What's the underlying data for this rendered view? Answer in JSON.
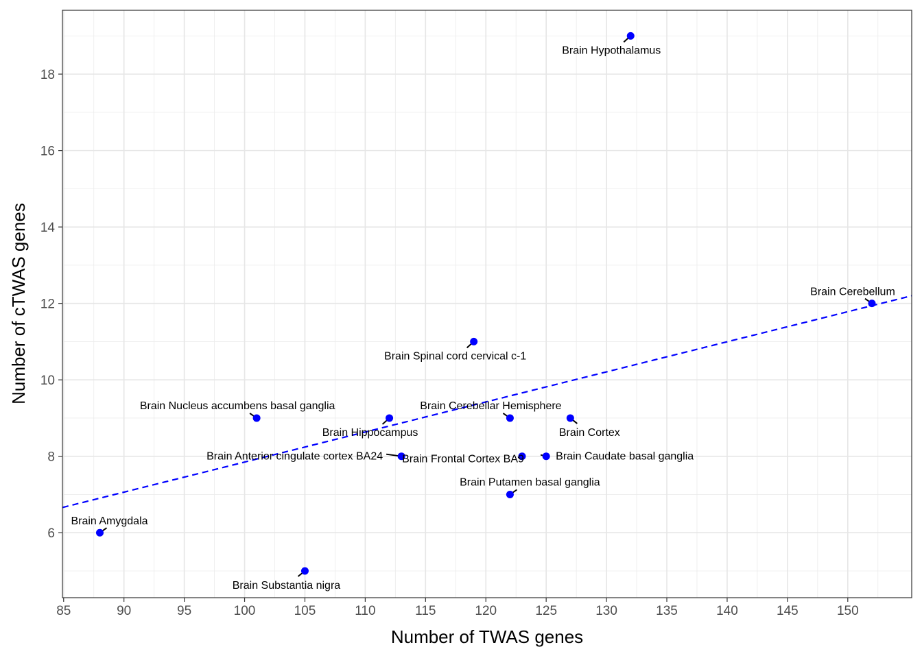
{
  "chart_data": {
    "type": "scatter",
    "xlabel": "Number of TWAS genes",
    "ylabel": "Number of cTWAS genes",
    "xlim": [
      84.9,
      155.3
    ],
    "ylim": [
      4.3,
      19.67
    ],
    "x_ticks": [
      "85",
      "90",
      "95",
      "100",
      "105",
      "110",
      "115",
      "120",
      "125",
      "130",
      "135",
      "140",
      "145",
      "150"
    ],
    "y_ticks": [
      "6",
      "8",
      "10",
      "12",
      "14",
      "16",
      "18"
    ],
    "grid": true,
    "point_color": "#0000ff",
    "trend_line": {
      "style": "dashed",
      "color": "#0000ff",
      "from": [
        84.9,
        6.66
      ],
      "to": [
        155.3,
        12.2
      ]
    },
    "points": [
      {
        "label": "Brain Hypothalamus",
        "x": 132,
        "y": 19
      },
      {
        "label": "Brain Cerebellum",
        "x": 152,
        "y": 12
      },
      {
        "label": "Brain Spinal cord cervical c-1",
        "x": 119,
        "y": 11
      },
      {
        "label": "Brain Nucleus accumbens basal ganglia",
        "x": 101,
        "y": 9
      },
      {
        "label": "Brain Hippocampus",
        "x": 112,
        "y": 9
      },
      {
        "label": "Brain Cerebellar Hemisphere",
        "x": 122,
        "y": 9
      },
      {
        "label": "Brain Cortex",
        "x": 127,
        "y": 9
      },
      {
        "label": "Brain Anterior cingulate cortex BA24",
        "x": 113,
        "y": 8
      },
      {
        "label": "Brain Frontal Cortex BA9",
        "x": 123,
        "y": 8
      },
      {
        "label": "Brain Caudate basal ganglia",
        "x": 125,
        "y": 8
      },
      {
        "label": "Brain Putamen basal ganglia",
        "x": 122,
        "y": 7
      },
      {
        "label": "Brain Amygdala",
        "x": 88,
        "y": 6
      },
      {
        "label": "Brain Substantia nigra",
        "x": 105,
        "y": 5
      }
    ]
  }
}
